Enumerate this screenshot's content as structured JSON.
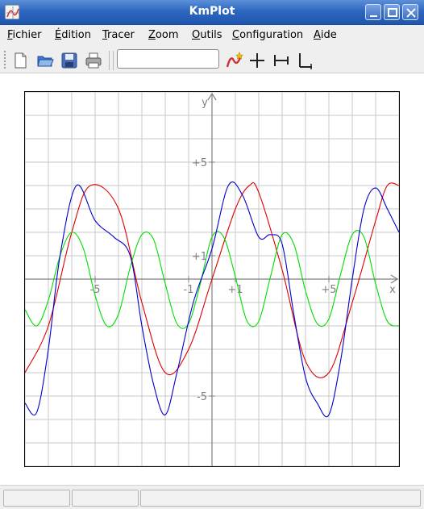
{
  "window": {
    "title": "KmPlot"
  },
  "menubar": {
    "items": [
      {
        "key": "F",
        "rest": "ichier"
      },
      {
        "key": "É",
        "rest": "dition"
      },
      {
        "key": "T",
        "rest": "racer"
      },
      {
        "key": "Z",
        "rest": "oom"
      },
      {
        "key": "O",
        "rest": "utils"
      },
      {
        "key": "C",
        "rest": "onfiguration"
      },
      {
        "key": "A",
        "rest": "ide"
      }
    ]
  },
  "toolbar": {
    "icons": [
      "new-document-icon",
      "open-folder-icon",
      "save-icon",
      "print-icon",
      "new-function-icon",
      "trace-mode-icon",
      "move-axes-icon",
      "axes-icon"
    ],
    "function_input": {
      "value": ""
    }
  },
  "plot": {
    "axis_labels": {
      "x": "x",
      "y": "y"
    },
    "x_range": [
      -8,
      8
    ],
    "y_range": [
      -8,
      8
    ],
    "tick_labels": {
      "x": [
        {
          "value": -5,
          "text": "-5"
        },
        {
          "value": -1,
          "text": "-1"
        },
        {
          "value": 1,
          "text": "+1"
        },
        {
          "value": 5,
          "text": "+5"
        }
      ],
      "y": [
        {
          "value": 5,
          "text": "+5"
        },
        {
          "value": 1,
          "text": "+1"
        },
        {
          "value": -5,
          "text": "-5"
        }
      ]
    },
    "colors": {
      "grid": "#c8c8c8",
      "axis": "#808080",
      "label": "#808080"
    }
  },
  "chart_data": {
    "type": "line",
    "grid": true,
    "xlim": [
      -8,
      8
    ],
    "ylim": [
      -8,
      8
    ],
    "series": [
      {
        "color": "#dd0000",
        "x": [
          -8,
          -7,
          -6,
          -5.2,
          -4,
          -3,
          -2,
          -1,
          0,
          1,
          1.6,
          2,
          3,
          4,
          5,
          6,
          7,
          7.5,
          8
        ],
        "y": [
          -4.0,
          -2.0,
          2.0,
          4.0,
          3.0,
          -1.0,
          -4.0,
          -3.0,
          0.0,
          3.0,
          4.0,
          3.7,
          0.4,
          -3.5,
          -4.0,
          -1.0,
          2.5,
          4.0,
          4.0
        ]
      },
      {
        "color": "#00dd00",
        "x": [
          -8,
          -7.5,
          -7,
          -6.5,
          -6,
          -5.5,
          -5,
          -4.5,
          -4,
          -3.5,
          -3,
          -2.5,
          -2,
          -1.5,
          -1,
          -0.5,
          0,
          0.5,
          1,
          1.5,
          2,
          2.5,
          3,
          3.5,
          4,
          4.5,
          5,
          5.5,
          6,
          6.5,
          7,
          7.5,
          8
        ],
        "y": [
          -1.3,
          -2.0,
          -0.9,
          1.0,
          2.0,
          1.3,
          -0.7,
          -2.0,
          -1.5,
          0.5,
          1.9,
          1.7,
          -0.2,
          -1.9,
          -1.9,
          -0.2,
          1.8,
          1.8,
          0.1,
          -1.8,
          -1.8,
          0.1,
          1.9,
          1.5,
          -0.5,
          -1.9,
          -1.7,
          0.2,
          1.9,
          1.8,
          -0.2,
          -1.8,
          -2.0
        ]
      },
      {
        "color": "#0000cc",
        "x": [
          -8,
          -7.5,
          -7,
          -6.5,
          -5.8,
          -5,
          -4.2,
          -3.5,
          -3,
          -2.5,
          -2,
          -1.5,
          -0.8,
          0,
          0.7,
          1.3,
          2,
          2.5,
          3,
          3.5,
          4,
          4.5,
          5,
          5.5,
          6,
          6.5,
          7,
          7.5,
          8
        ],
        "y": [
          -5.3,
          -5.7,
          -3.0,
          1.0,
          4.0,
          2.5,
          1.8,
          1.0,
          -2.0,
          -4.5,
          -5.8,
          -4.0,
          -1.0,
          1.3,
          4.0,
          3.6,
          1.8,
          1.9,
          1.5,
          -1.5,
          -4.2,
          -5.3,
          -5.8,
          -3.5,
          0.0,
          3.0,
          3.9,
          3.0,
          2.0
        ]
      }
    ]
  },
  "statusbar": {
    "cells": [
      "",
      "",
      ""
    ]
  }
}
